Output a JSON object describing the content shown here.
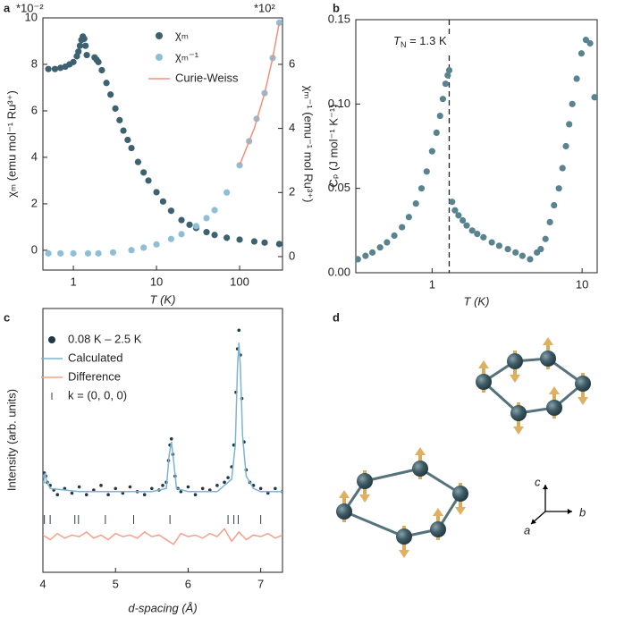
{
  "chart_data": [
    {
      "type": "scatter",
      "label": "a",
      "xscale": "log",
      "xlabel": "T (K)",
      "ylabel": "χₘ (emu mol⁻¹ Ru³⁺)",
      "y2label": "χₘ⁻¹ (emu⁻¹ mol Ru³⁺)",
      "y_multiplier": "*10⁻²",
      "y2_multiplier": "*10²",
      "xlim": [
        0.43,
        328
      ],
      "ylim": [
        -0.85,
        10
      ],
      "y2lim": [
        -0.42,
        7.45
      ],
      "xticks": [
        1,
        10,
        100
      ],
      "yticks": [
        0,
        2,
        4,
        6,
        8,
        10
      ],
      "y2ticks": [
        0,
        2,
        4,
        6
      ],
      "series": [
        {
          "name": "χₘ",
          "color": "#3d6170",
          "style": "points",
          "x": [
            0.5,
            0.6,
            0.7,
            0.8,
            0.9,
            1.0,
            1.1,
            1.15,
            1.2,
            1.25,
            1.3,
            1.35,
            1.4,
            1.45,
            1.8,
            1.9,
            2,
            2.2,
            2.5,
            2.8,
            3.2,
            3.6,
            4,
            4.5,
            5,
            6,
            7,
            8,
            10,
            12,
            15,
            20,
            25,
            30,
            40,
            50,
            70,
            100,
            150,
            200,
            300
          ],
          "values": [
            7.8,
            7.8,
            7.85,
            7.9,
            8.0,
            8.1,
            8.35,
            8.55,
            8.8,
            9.05,
            9.2,
            9.1,
            8.8,
            8.4,
            8.3,
            8.2,
            8.1,
            7.75,
            7.2,
            6.7,
            6.1,
            5.6,
            5.15,
            4.75,
            4.4,
            3.8,
            3.35,
            3.0,
            2.5,
            2.1,
            1.7,
            1.3,
            1.1,
            0.96,
            0.78,
            0.66,
            0.54,
            0.46,
            0.38,
            0.33,
            0.27
          ]
        },
        {
          "name": "χₘ⁻¹",
          "color": "#8fbfd6",
          "style": "points",
          "axis": "y2",
          "x": [
            0.5,
            0.7,
            1,
            1.5,
            2,
            3,
            5,
            7,
            10,
            15,
            20,
            30,
            40,
            50,
            70,
            100,
            130,
            160,
            200,
            250,
            300
          ],
          "values": [
            0.1,
            0.1,
            0.1,
            0.1,
            0.1,
            0.13,
            0.2,
            0.28,
            0.38,
            0.55,
            0.7,
            0.95,
            1.2,
            1.45,
            2.0,
            2.85,
            3.6,
            4.3,
            5.1,
            6.2,
            7.3
          ]
        },
        {
          "name": "Curie-Weiss",
          "color": "#f0907c",
          "style": "line",
          "axis": "y2",
          "x": [
            100,
            150,
            200,
            250,
            300
          ],
          "values": [
            2.85,
            4.0,
            5.1,
            6.2,
            7.3
          ]
        }
      ]
    },
    {
      "type": "scatter",
      "label": "b",
      "xscale": "log",
      "xlabel": "T (K)",
      "ylabel": "Cₚ (J mol⁻¹ K⁻¹)",
      "annotation": [
        "T",
        "N",
        " = 1.3 K"
      ],
      "vline": 1.3,
      "xlim": [
        0.31,
        12.6
      ],
      "ylim": [
        0,
        0.15
      ],
      "xticks": [
        1,
        10
      ],
      "yticks": [
        {
          "value": 0,
          "label": "0.00"
        },
        {
          "value": 0.05,
          "label": "0.05"
        },
        {
          "value": 0.1,
          "label": "0.10"
        },
        {
          "value": 0.15,
          "label": "0.15"
        }
      ],
      "series": [
        {
          "color": "#5a8390",
          "style": "points",
          "x": [
            0.32,
            0.36,
            0.4,
            0.45,
            0.5,
            0.56,
            0.63,
            0.7,
            0.78,
            0.85,
            0.92,
            1.0,
            1.07,
            1.13,
            1.18,
            1.23,
            1.27,
            1.3,
            1.36,
            1.42,
            1.5,
            1.6,
            1.7,
            1.85,
            2.0,
            2.2,
            2.5,
            2.8,
            3.2,
            3.6,
            4.0,
            4.5,
            5.0,
            5.3,
            5.7,
            6.1,
            6.5,
            7.0,
            7.4,
            7.8,
            8.2,
            8.6,
            9.2,
            9.9,
            10.6,
            11.3,
            12.1
          ],
          "values": [
            0.008,
            0.01,
            0.012,
            0.015,
            0.018,
            0.022,
            0.027,
            0.033,
            0.041,
            0.05,
            0.06,
            0.072,
            0.083,
            0.093,
            0.103,
            0.112,
            0.117,
            0.12,
            0.042,
            0.037,
            0.034,
            0.031,
            0.028,
            0.025,
            0.023,
            0.021,
            0.018,
            0.016,
            0.014,
            0.012,
            0.01,
            0.008,
            0.012,
            0.014,
            0.02,
            0.03,
            0.04,
            0.05,
            0.062,
            0.075,
            0.088,
            0.1,
            0.115,
            0.13,
            0.138,
            0.136,
            0.104
          ]
        }
      ]
    },
    {
      "type": "line",
      "label": "c",
      "xscale": "linear",
      "xlabel": "d-spacing (Å)",
      "ylabel": "Intensity (arb. units)",
      "xlim": [
        4.0,
        7.3
      ],
      "ylim": [
        -2.6,
        5.9
      ],
      "xticks": [
        4,
        5,
        6,
        7
      ],
      "series": [
        {
          "name": "0.08 K – 2.5 K",
          "color": "#1e3a48",
          "style": "points",
          "x": [
            4.0,
            4.02,
            4.04,
            4.06,
            4.1,
            4.15,
            4.2,
            4.3,
            4.4,
            4.5,
            4.6,
            4.7,
            4.8,
            4.9,
            5.0,
            5.1,
            5.2,
            5.3,
            5.4,
            5.5,
            5.6,
            5.65,
            5.7,
            5.73,
            5.75,
            5.77,
            5.79,
            5.82,
            5.86,
            5.9,
            6.0,
            6.1,
            6.2,
            6.3,
            6.4,
            6.5,
            6.55,
            6.6,
            6.63,
            6.66,
            6.68,
            6.7,
            6.72,
            6.74,
            6.77,
            6.8,
            6.85,
            6.9,
            7.0,
            7.1,
            7.2,
            7.3
          ],
          "values": [
            0.3,
            0.6,
            0.5,
            0.3,
            0.2,
            0.05,
            -0.1,
            0.1,
            -0.05,
            0.15,
            -0.1,
            0.05,
            0.2,
            -0.1,
            0.1,
            -0.05,
            0.15,
            0,
            -0.1,
            0.1,
            0.05,
            0.2,
            0.3,
            1.0,
            1.5,
            1.7,
            1.2,
            0.5,
            0.1,
            0,
            0.15,
            -0.1,
            0.1,
            0.05,
            0.2,
            0.3,
            0.45,
            0.8,
            1.5,
            3.2,
            4.6,
            5.2,
            4.4,
            3.0,
            1.6,
            0.7,
            0.3,
            0.2,
            0.1,
            -0.05,
            0.1,
            0
          ]
        },
        {
          "name": "Calculated",
          "color": "#7db4d0",
          "style": "line",
          "x": [
            4.0,
            4.02,
            4.03,
            4.05,
            4.1,
            4.5,
            5.0,
            5.5,
            5.7,
            5.74,
            5.77,
            5.8,
            5.84,
            6.0,
            6.4,
            6.6,
            6.65,
            6.68,
            6.7,
            6.72,
            6.75,
            6.8,
            6.9,
            7.0,
            7.3
          ],
          "values": [
            0.2,
            0.45,
            0.6,
            0.35,
            0.1,
            0,
            0,
            0,
            0.1,
            1.2,
            1.6,
            1.0,
            0.1,
            0,
            0,
            0.4,
            1.5,
            4.0,
            4.8,
            4.0,
            1.8,
            0.5,
            0.1,
            0,
            0
          ]
        },
        {
          "name": "Difference",
          "color": "#f4a08c",
          "style": "line",
          "x": [
            4.0,
            4.1,
            4.2,
            4.3,
            4.4,
            4.5,
            4.6,
            4.7,
            4.8,
            4.9,
            5.0,
            5.1,
            5.2,
            5.3,
            5.4,
            5.5,
            5.6,
            5.7,
            5.8,
            5.9,
            6.0,
            6.1,
            6.2,
            6.3,
            6.4,
            6.5,
            6.6,
            6.7,
            6.8,
            6.9,
            7.0,
            7.1,
            7.2,
            7.3
          ],
          "values": [
            -1.4,
            -1.55,
            -1.35,
            -1.5,
            -1.4,
            -1.45,
            -1.3,
            -1.5,
            -1.4,
            -1.55,
            -1.35,
            -1.45,
            -1.4,
            -1.5,
            -1.3,
            -1.45,
            -1.4,
            -1.55,
            -1.7,
            -1.35,
            -1.45,
            -1.4,
            -1.5,
            -1.35,
            -1.45,
            -1.2,
            -1.6,
            -1.3,
            -1.55,
            -1.4,
            -1.45,
            -1.35,
            -1.5,
            -1.4
          ]
        },
        {
          "name": "k = (0, 0, 0)",
          "color": "#2a3f4a",
          "style": "ticks",
          "x": [
            4.02,
            4.1,
            4.44,
            4.49,
            4.86,
            5.25,
            5.75,
            6.55,
            6.63,
            6.69,
            7.0
          ]
        }
      ]
    }
  ],
  "diagram": {
    "label": "d",
    "axes": [
      "c",
      "b",
      "a"
    ]
  }
}
